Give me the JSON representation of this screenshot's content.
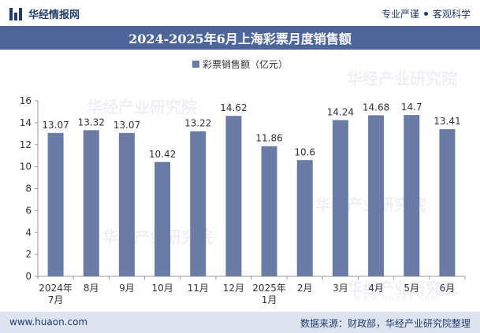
{
  "header": {
    "brand": "华经情报网",
    "tagline_left": "专业严谨",
    "tagline_right": "客观科学"
  },
  "footer": {
    "url": "www.huaon.com",
    "source": "数据来源：财政部，华经产业研究院整理"
  },
  "watermark": {
    "text": "华经产业研究院",
    "url": "www.huaon.com"
  },
  "colors": {
    "bar": "#6a7ca6",
    "title_bar": "#4e6598",
    "footer_bg": "#dde4f0",
    "brand": "#1f3a6b"
  },
  "chart_data": {
    "type": "bar",
    "title": "2024-2025年6月上海彩票月度销售额",
    "categories": [
      [
        "2024年",
        "7月"
      ],
      [
        "8月"
      ],
      [
        "9月"
      ],
      [
        "10月"
      ],
      [
        "11月"
      ],
      [
        "12月"
      ],
      [
        "2025年",
        "1月"
      ],
      [
        "2月"
      ],
      [
        "3月"
      ],
      [
        "4月"
      ],
      [
        "5月"
      ],
      [
        "6月"
      ]
    ],
    "series": [
      {
        "name": "彩票销售额（亿元）",
        "values": [
          13.07,
          13.32,
          13.07,
          10.42,
          13.22,
          14.62,
          11.86,
          10.6,
          14.24,
          14.68,
          14.7,
          13.41
        ]
      }
    ],
    "data_labels": [
      "13.07",
      "13.32",
      "13.07",
      "10.42",
      "13.22",
      "14.62",
      "11.86",
      "10.6",
      "14.24",
      "14.68",
      "14.7",
      "13.41"
    ],
    "ylim": [
      0,
      16
    ],
    "yticks": [
      0,
      2,
      4,
      6,
      8,
      10,
      12,
      14,
      16
    ],
    "legend_position": "top-center",
    "grid": false
  }
}
